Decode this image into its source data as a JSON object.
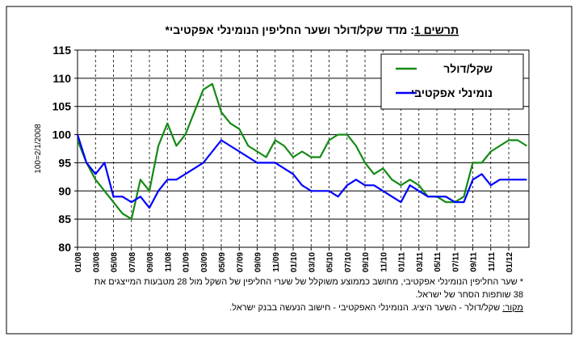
{
  "chart_data": {
    "type": "line",
    "title_label": "תרשים 1",
    "title": ": מדד שקל/דולר ושער החליפין הנומינלי אפקטיבי*",
    "y_label": "100=2/1/2008",
    "categories": [
      "01/08",
      null,
      "03/08",
      null,
      "05/08",
      null,
      "07/08",
      null,
      "09/08",
      null,
      "11/08",
      null,
      "01/09",
      null,
      "03/09",
      null,
      "05/09",
      null,
      "07/09",
      null,
      "09/09",
      null,
      "11/09",
      null,
      "01/10",
      null,
      "03/10",
      null,
      "05/10",
      null,
      "07/10",
      null,
      "09/10",
      null,
      "11/10",
      null,
      "01/11",
      null,
      "03/11",
      null,
      "05/11",
      null,
      "07/11",
      null,
      "09/11",
      null,
      "11/11",
      null,
      "01/12",
      null,
      null
    ],
    "series": [
      {
        "name": "שקל/דולר",
        "color": "#138a13",
        "values": [
          99,
          95,
          92,
          90,
          88,
          86,
          85,
          92,
          90,
          98,
          102,
          98,
          100,
          104,
          108,
          109,
          104,
          102,
          101,
          98,
          97,
          96,
          99,
          98,
          96,
          97,
          96,
          96,
          99,
          100,
          100,
          98,
          95,
          93,
          94,
          92,
          91,
          92,
          91,
          89,
          89,
          88,
          88,
          89,
          95,
          95,
          97,
          98,
          99,
          99,
          98
        ]
      },
      {
        "name": "נומינלי אפקטיבי",
        "color": "#0000ff",
        "values": [
          100,
          95,
          93,
          95,
          89,
          89,
          88,
          89,
          87,
          90,
          92,
          92,
          93,
          94,
          95,
          97,
          99,
          98,
          97,
          96,
          95,
          95,
          95,
          94,
          93,
          91,
          90,
          90,
          90,
          89,
          91,
          92,
          91,
          91,
          90,
          89,
          88,
          91,
          90,
          89,
          89,
          89,
          88,
          88,
          92,
          93,
          91,
          92,
          92,
          92,
          92
        ]
      }
    ],
    "ylim": [
      80,
      115
    ],
    "yticks": [
      80,
      85,
      90,
      95,
      100,
      105,
      110,
      115
    ],
    "grid": true,
    "legend": "upper right",
    "footnote": [
      "* שער החליפין הנומינלי אפקטיבי, מחושב כממוצע משוקלל של שערי החליפין של השקל מול 28 מטבעות המייצגים את",
      "38 שותפות הסחר של ישראל."
    ],
    "source_label": "מקור:",
    "source": " שקל/דולר - השער היציג. הנומינלי האפקטיבי - חישוב הנעשה בבנק ישראל."
  }
}
